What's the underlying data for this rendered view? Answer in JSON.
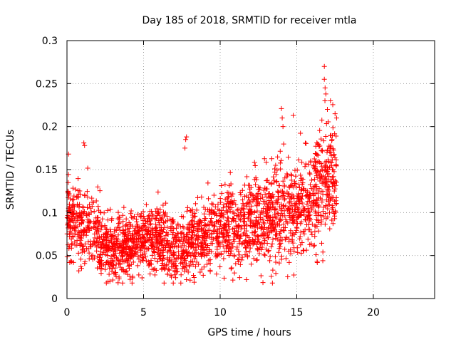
{
  "chart_data": {
    "type": "scatter",
    "title": "Day 185 of 2018, SRMTID for receiver mtla",
    "xlabel": "GPS time / hours",
    "ylabel": "SRMTID / TECUs",
    "xlim": [
      0,
      24
    ],
    "ylim": [
      0,
      0.3
    ],
    "x_ticks": [
      0,
      5,
      10,
      15,
      20
    ],
    "x_tick_labels": [
      "0",
      "5",
      "10",
      "15",
      "20"
    ],
    "y_ticks": [
      0,
      0.05,
      0.1,
      0.15,
      0.2,
      0.25,
      0.3
    ],
    "y_tick_labels": [
      "0",
      "0.05",
      "0.1",
      "0.15",
      "0.2",
      "0.25",
      "0.3"
    ],
    "grid": true,
    "marker": "+",
    "color": "#ff0000",
    "trend": [
      [
        0.0,
        0.092
      ],
      [
        0.5,
        0.088
      ],
      [
        1.0,
        0.085
      ],
      [
        1.5,
        0.082
      ],
      [
        2.0,
        0.074
      ],
      [
        2.5,
        0.06
      ],
      [
        3.0,
        0.055
      ],
      [
        3.5,
        0.058
      ],
      [
        4.0,
        0.062
      ],
      [
        4.5,
        0.066
      ],
      [
        5.0,
        0.072
      ],
      [
        5.5,
        0.075
      ],
      [
        6.0,
        0.072
      ],
      [
        6.5,
        0.065
      ],
      [
        7.0,
        0.058
      ],
      [
        7.5,
        0.06
      ],
      [
        8.0,
        0.068
      ],
      [
        8.5,
        0.074
      ],
      [
        9.0,
        0.076
      ],
      [
        9.5,
        0.078
      ],
      [
        10.0,
        0.082
      ],
      [
        10.5,
        0.085
      ],
      [
        11.0,
        0.082
      ],
      [
        11.5,
        0.085
      ],
      [
        12.0,
        0.09
      ],
      [
        12.5,
        0.094
      ],
      [
        13.0,
        0.098
      ],
      [
        13.5,
        0.1
      ],
      [
        14.0,
        0.102
      ],
      [
        14.5,
        0.098
      ],
      [
        15.0,
        0.102
      ],
      [
        15.5,
        0.11
      ],
      [
        16.0,
        0.118
      ],
      [
        16.5,
        0.128
      ],
      [
        17.0,
        0.138
      ],
      [
        17.6,
        0.15
      ]
    ],
    "spread": [
      [
        0.0,
        0.022
      ],
      [
        3.0,
        0.018
      ],
      [
        7.0,
        0.018
      ],
      [
        10.0,
        0.022
      ],
      [
        14.0,
        0.028
      ],
      [
        17.6,
        0.035
      ]
    ],
    "point_count": 2400,
    "x_range_covered": [
      0.0,
      17.6
    ],
    "y_min_observed": 0.018,
    "y_max_observed": 0.27,
    "highlights": [
      [
        0.1,
        0.168
      ],
      [
        1.1,
        0.181
      ],
      [
        1.15,
        0.178
      ],
      [
        7.8,
        0.188
      ],
      [
        7.75,
        0.185
      ],
      [
        7.7,
        0.175
      ],
      [
        14.0,
        0.221
      ],
      [
        14.05,
        0.21
      ],
      [
        14.1,
        0.2
      ],
      [
        16.8,
        0.27
      ],
      [
        16.8,
        0.255
      ],
      [
        16.85,
        0.245
      ],
      [
        16.9,
        0.238
      ],
      [
        17.0,
        0.22
      ],
      [
        17.5,
        0.215
      ],
      [
        17.6,
        0.21
      ],
      [
        16.7,
        0.044
      ],
      [
        4.9,
        0.024
      ],
      [
        3.4,
        0.025
      ],
      [
        2.8,
        0.02
      ],
      [
        7.8,
        0.022
      ],
      [
        8.3,
        0.019
      ]
    ]
  }
}
